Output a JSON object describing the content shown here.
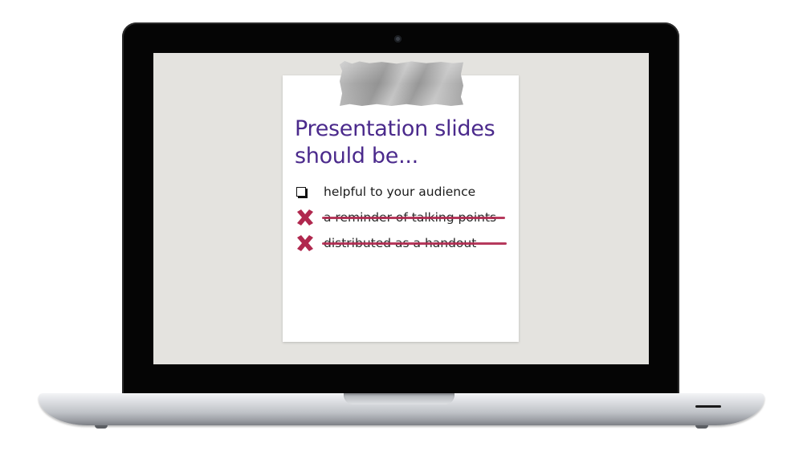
{
  "slide": {
    "title_line1": "Presentation slides",
    "title_line2": "should be...",
    "items": [
      {
        "label": "helpful to your audience",
        "state": "unchecked"
      },
      {
        "label": "a reminder of talking points",
        "state": "crossed-out"
      },
      {
        "label": "distributed as a handout",
        "state": "crossed-out"
      }
    ]
  },
  "icons": {
    "checkbox": "checkbox-icon",
    "cross": "x-mark-icon",
    "tape": "duct-tape-icon",
    "camera": "webcam-icon"
  },
  "colors": {
    "title": "#4b2a8c",
    "cross": "#b0284e",
    "screen_background": "#e4e3df",
    "bezel": "#050505"
  }
}
